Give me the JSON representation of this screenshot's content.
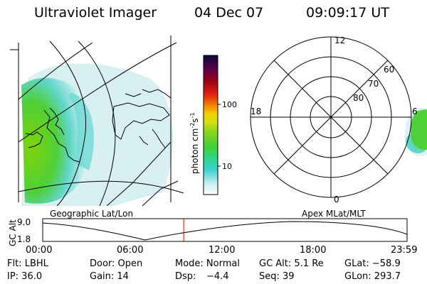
{
  "header": {
    "title": "Ultraviolet Imager",
    "date": "04 Dec 07",
    "time": "09:09:17 UT"
  },
  "colorbar": {
    "unit_prefix": "photon cm",
    "unit_exp1": "-2",
    "unit_mid": "s",
    "unit_exp2": "-1",
    "tick_high": "100",
    "tick_low": "10"
  },
  "polar_plot": {
    "mlt_top": "12",
    "mlt_left": "18",
    "mlt_right": "6",
    "mlt_bottom": "0",
    "lat_labels": [
      "60",
      "70",
      "80"
    ]
  },
  "timeline": {
    "left_caption": "Geographic Lat/Lon",
    "right_caption": "Apex MLat/MLT",
    "axis_label": "GC Alt",
    "y_top": "9.0",
    "y_bottom": "1.8",
    "ticks": [
      "00:00",
      "06:00",
      "12:00",
      "18:00",
      "23:59"
    ],
    "current_fraction": 0.387
  },
  "info": {
    "filter": "Flt: LBHL",
    "door": "Door: Open",
    "mode": "Mode: Normal",
    "gc_alt": "GC Alt: 5.1 Re",
    "glat": "GLat: −58.9",
    "ip": "IP: 36.0",
    "gain": "Gain: 14",
    "dsp_label": "Dsp:",
    "dsp_value": "−4.4",
    "seq": "Seq: 39",
    "glon": "GLon: 293.7"
  },
  "colors": {
    "cursor": "#ff0000",
    "line": "#000000"
  }
}
